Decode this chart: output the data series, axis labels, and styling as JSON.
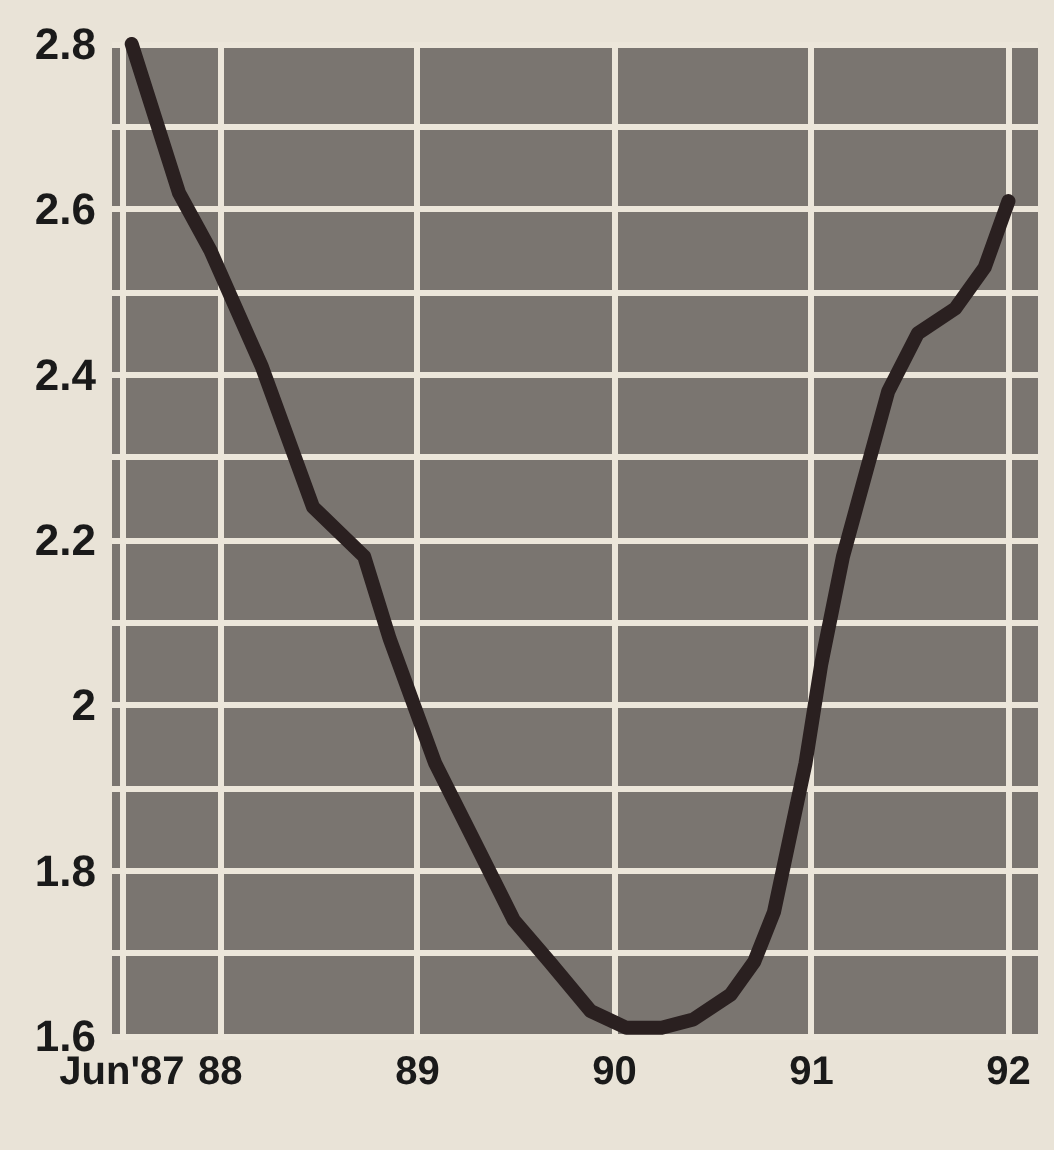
{
  "chart_data": {
    "type": "line",
    "xlim": [
      1987.45,
      1992.15
    ],
    "ylim": [
      1.6,
      2.8
    ],
    "xticks": [
      {
        "value": 1987.5,
        "label": "Jun'87"
      },
      {
        "value": 1988,
        "label": "88"
      },
      {
        "value": 1989,
        "label": "89"
      },
      {
        "value": 1990,
        "label": "90"
      },
      {
        "value": 1991,
        "label": "91"
      },
      {
        "value": 1992,
        "label": "92"
      }
    ],
    "yticks": [
      1.6,
      {
        "value": 1.7,
        "label": null
      },
      1.8,
      {
        "value": 1.9,
        "label": null
      },
      2.0,
      {
        "value": 2.1,
        "label": null
      },
      2.2,
      {
        "value": 2.3,
        "label": null
      },
      2.4,
      {
        "value": 2.5,
        "label": null
      },
      2.6,
      {
        "value": 2.7,
        "label": null
      },
      2.8
    ],
    "grid": true,
    "marker": "none",
    "line_style": "solid",
    "series": [
      {
        "color": "#2a2020",
        "x": [
          1987.55,
          1987.79,
          1987.95,
          1988.21,
          1988.47,
          1988.73,
          1988.86,
          1989.09,
          1989.28,
          1989.49,
          1989.67,
          1989.88,
          1990.06,
          1990.24,
          1990.4,
          1990.59,
          1990.71,
          1990.81,
          1990.89,
          1990.97,
          1991.05,
          1991.16,
          1991.39,
          1991.54,
          1991.73,
          1991.88,
          1992.0
        ],
        "values": [
          2.8,
          2.62,
          2.55,
          2.41,
          2.24,
          2.18,
          2.08,
          1.93,
          1.84,
          1.74,
          1.69,
          1.63,
          1.61,
          1.61,
          1.62,
          1.65,
          1.69,
          1.75,
          1.84,
          1.93,
          2.05,
          2.18,
          2.38,
          2.45,
          2.48,
          2.53,
          2.61
        ]
      }
    ]
  }
}
